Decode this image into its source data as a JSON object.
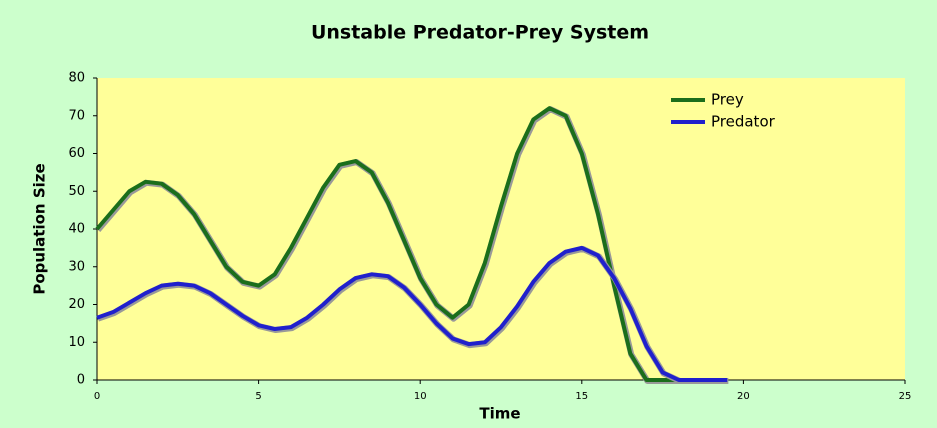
{
  "chart_data": {
    "type": "line",
    "title": "Unstable Predator-Prey System",
    "x_label": "Time",
    "y_label": "Population Size",
    "x": [
      0,
      0.5,
      1,
      1.5,
      2,
      2.5,
      3,
      3.5,
      4,
      4.5,
      5,
      5.5,
      6,
      6.5,
      7,
      7.5,
      8,
      8.5,
      9,
      9.5,
      10,
      10.5,
      11,
      11.5,
      12,
      12.5,
      13,
      13.5,
      14,
      14.5,
      15,
      15.5,
      16,
      16.5,
      17,
      17.5,
      18,
      18.5,
      19,
      19.5
    ],
    "series": [
      {
        "name": "Prey",
        "color": "#1b6e1b",
        "values": [
          40,
          45,
          50,
          52.5,
          52,
          49,
          44,
          37,
          30,
          26,
          25,
          28,
          35,
          43,
          51,
          57,
          58,
          55,
          47,
          37,
          27,
          20,
          16.5,
          20,
          31,
          46,
          60,
          69,
          72,
          70,
          60,
          44,
          25,
          7,
          0,
          0,
          0,
          0,
          0,
          0
        ]
      },
      {
        "name": "Predator",
        "color": "#2020cc",
        "values": [
          16.5,
          18,
          20.5,
          23,
          25,
          25.5,
          25,
          23,
          20,
          17,
          14.5,
          13.5,
          14,
          16.5,
          20,
          24,
          27,
          28,
          27.5,
          24.5,
          20,
          15,
          11,
          9.5,
          10,
          14,
          19.5,
          26,
          31,
          34,
          35,
          33,
          27,
          19,
          9,
          2,
          0,
          0,
          0,
          0
        ]
      }
    ],
    "xlim": [
      0,
      25
    ],
    "xticks": [
      0,
      5,
      10,
      15,
      20,
      25
    ],
    "ylim": [
      0,
      80
    ],
    "yticks": [
      0,
      10,
      20,
      30,
      40,
      50,
      60,
      70,
      80
    ],
    "grid": false,
    "legend": "upper right"
  }
}
